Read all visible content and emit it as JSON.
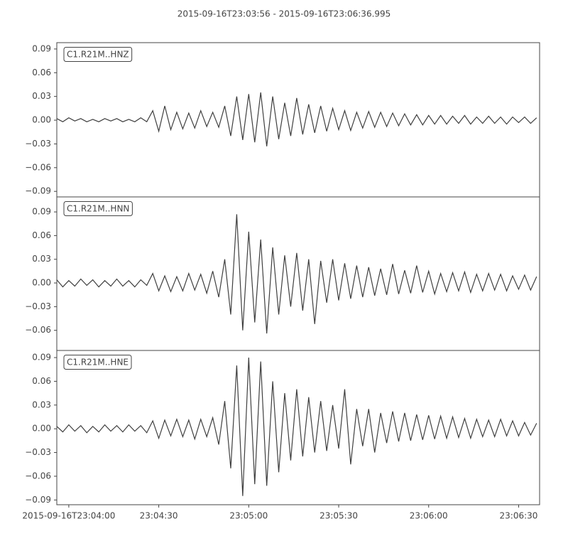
{
  "title": "2015-09-16T23:03:56  -  2015-09-16T23:06:36.995",
  "chart_data": [
    {
      "type": "line",
      "xlim": [
        0,
        160.995
      ],
      "ylim": [
        -0.097,
        0.098
      ],
      "yticks": [
        {
          "value": -0.09,
          "label": "−0.09"
        },
        {
          "value": -0.06,
          "label": "−0.06"
        },
        {
          "value": -0.03,
          "label": "−0.03"
        },
        {
          "value": 0,
          "label": "0.00"
        },
        0.03,
        0.06,
        0.09
      ],
      "x": [
        0,
        2,
        4,
        6,
        8,
        10,
        12,
        14,
        16,
        18,
        20,
        22,
        24,
        26,
        28,
        30,
        32,
        34,
        36,
        38,
        40,
        42,
        44,
        46,
        48,
        50,
        52,
        54,
        56,
        58,
        60,
        62,
        64,
        66,
        68,
        70,
        72,
        74,
        76,
        78,
        80,
        82,
        84,
        86,
        88,
        90,
        92,
        94,
        96,
        98,
        100,
        102,
        104,
        106,
        108,
        110,
        112,
        114,
        116,
        118,
        120,
        122,
        124,
        126,
        128,
        130,
        132,
        134,
        136,
        138,
        140,
        142,
        144,
        146,
        148,
        150,
        152,
        154,
        156,
        158,
        160
      ],
      "series": [
        {
          "name": "C1.R21M..HNZ",
          "color": "#3f3f3f",
          "values": [
            0.002,
            -0.002,
            0.003,
            -0.001,
            0.002,
            -0.002,
            0.001,
            -0.002,
            0.002,
            -0.001,
            0.002,
            -0.002,
            0.001,
            -0.002,
            0.003,
            -0.002,
            0.012,
            -0.014,
            0.018,
            -0.012,
            0.01,
            -0.011,
            0.009,
            -0.01,
            0.012,
            -0.008,
            0.01,
            -0.009,
            0.018,
            -0.02,
            0.03,
            -0.025,
            0.033,
            -0.028,
            0.035,
            -0.033,
            0.03,
            -0.024,
            0.022,
            -0.02,
            0.028,
            -0.018,
            0.02,
            -0.016,
            0.018,
            -0.014,
            0.015,
            -0.012,
            0.012,
            -0.013,
            0.01,
            -0.01,
            0.011,
            -0.009,
            0.01,
            -0.008,
            0.009,
            -0.007,
            0.008,
            -0.006,
            0.007,
            -0.006,
            0.006,
            -0.005,
            0.006,
            -0.005,
            0.005,
            -0.004,
            0.006,
            -0.005,
            0.004,
            -0.004,
            0.005,
            -0.004,
            0.004,
            -0.005,
            0.004,
            -0.003,
            0.004,
            -0.004,
            0.003
          ]
        }
      ]
    },
    {
      "type": "line",
      "xlim": [
        0,
        160.995
      ],
      "ylim": [
        -0.0855,
        0.109
      ],
      "yticks": [
        {
          "value": -0.06,
          "label": "−0.06"
        },
        {
          "value": -0.03,
          "label": "−0.03"
        },
        {
          "value": 0,
          "label": "0.00"
        },
        0.03,
        0.06,
        0.09
      ],
      "x": [
        0,
        2,
        4,
        6,
        8,
        10,
        12,
        14,
        16,
        18,
        20,
        22,
        24,
        26,
        28,
        30,
        32,
        34,
        36,
        38,
        40,
        42,
        44,
        46,
        48,
        50,
        52,
        54,
        56,
        58,
        60,
        62,
        64,
        66,
        68,
        70,
        72,
        74,
        76,
        78,
        80,
        82,
        84,
        86,
        88,
        90,
        92,
        94,
        96,
        98,
        100,
        102,
        104,
        106,
        108,
        110,
        112,
        114,
        116,
        118,
        120,
        122,
        124,
        126,
        128,
        130,
        132,
        134,
        136,
        138,
        140,
        142,
        144,
        146,
        148,
        150,
        152,
        154,
        156,
        158,
        160
      ],
      "series": [
        {
          "name": "C1.R21M..HNN",
          "color": "#3f3f3f",
          "values": [
            0.004,
            -0.005,
            0.003,
            -0.004,
            0.005,
            -0.003,
            0.004,
            -0.005,
            0.003,
            -0.004,
            0.005,
            -0.004,
            0.003,
            -0.005,
            0.004,
            -0.003,
            0.012,
            -0.01,
            0.009,
            -0.011,
            0.008,
            -0.01,
            0.012,
            -0.009,
            0.011,
            -0.013,
            0.015,
            -0.018,
            0.03,
            -0.04,
            0.087,
            -0.06,
            0.065,
            -0.05,
            0.055,
            -0.064,
            0.045,
            -0.04,
            0.035,
            -0.03,
            0.038,
            -0.035,
            0.03,
            -0.052,
            0.028,
            -0.025,
            0.03,
            -0.022,
            0.025,
            -0.02,
            0.022,
            -0.018,
            0.02,
            -0.016,
            0.018,
            -0.015,
            0.024,
            -0.014,
            0.016,
            -0.013,
            0.022,
            -0.012,
            0.015,
            -0.014,
            0.012,
            -0.011,
            0.013,
            -0.01,
            0.014,
            -0.012,
            0.011,
            -0.01,
            0.012,
            -0.009,
            0.011,
            -0.01,
            0.009,
            -0.008,
            0.01,
            -0.009,
            0.008
          ]
        }
      ]
    },
    {
      "type": "line",
      "xlim": [
        0,
        160.995
      ],
      "ylim": [
        -0.096,
        0.099
      ],
      "yticks": [
        {
          "value": -0.09,
          "label": "−0.09"
        },
        {
          "value": -0.06,
          "label": "−0.06"
        },
        {
          "value": -0.03,
          "label": "−0.03"
        },
        {
          "value": 0,
          "label": "0.00"
        },
        0.03,
        0.06,
        0.09
      ],
      "xticks": [
        {
          "value": 4,
          "label": "2015-09-16T23:04:00"
        },
        {
          "value": 34,
          "label": "23:04:30"
        },
        {
          "value": 64,
          "label": "23:05:00"
        },
        {
          "value": 94,
          "label": "23:05:30"
        },
        {
          "value": 124,
          "label": "23:06:00"
        },
        {
          "value": 154,
          "label": "23:06:30"
        }
      ],
      "x": [
        0,
        2,
        4,
        6,
        8,
        10,
        12,
        14,
        16,
        18,
        20,
        22,
        24,
        26,
        28,
        30,
        32,
        34,
        36,
        38,
        40,
        42,
        44,
        46,
        48,
        50,
        52,
        54,
        56,
        58,
        60,
        62,
        64,
        66,
        68,
        70,
        72,
        74,
        76,
        78,
        80,
        82,
        84,
        86,
        88,
        90,
        92,
        94,
        96,
        98,
        100,
        102,
        104,
        106,
        108,
        110,
        112,
        114,
        116,
        118,
        120,
        122,
        124,
        126,
        128,
        130,
        132,
        134,
        136,
        138,
        140,
        142,
        144,
        146,
        148,
        150,
        152,
        154,
        156,
        158,
        160
      ],
      "series": [
        {
          "name": "C1.R21M..HNE",
          "color": "#3f3f3f",
          "values": [
            0.003,
            -0.004,
            0.005,
            -0.003,
            0.004,
            -0.005,
            0.003,
            -0.004,
            0.005,
            -0.003,
            0.004,
            -0.004,
            0.005,
            -0.003,
            0.004,
            -0.005,
            0.01,
            -0.012,
            0.011,
            -0.009,
            0.012,
            -0.01,
            0.011,
            -0.013,
            0.012,
            -0.01,
            0.014,
            -0.02,
            0.035,
            -0.05,
            0.08,
            -0.085,
            0.09,
            -0.07,
            0.085,
            -0.072,
            0.06,
            -0.055,
            0.045,
            -0.04,
            0.05,
            -0.035,
            0.04,
            -0.03,
            0.035,
            -0.028,
            0.03,
            -0.025,
            0.05,
            -0.045,
            0.025,
            -0.022,
            0.025,
            -0.03,
            0.02,
            -0.018,
            0.022,
            -0.016,
            0.02,
            -0.015,
            0.018,
            -0.014,
            0.017,
            -0.013,
            0.016,
            -0.012,
            0.015,
            -0.011,
            0.013,
            -0.012,
            0.012,
            -0.01,
            0.011,
            -0.01,
            0.012,
            -0.009,
            0.01,
            -0.009,
            0.008,
            -0.008,
            0.007
          ]
        }
      ]
    }
  ]
}
